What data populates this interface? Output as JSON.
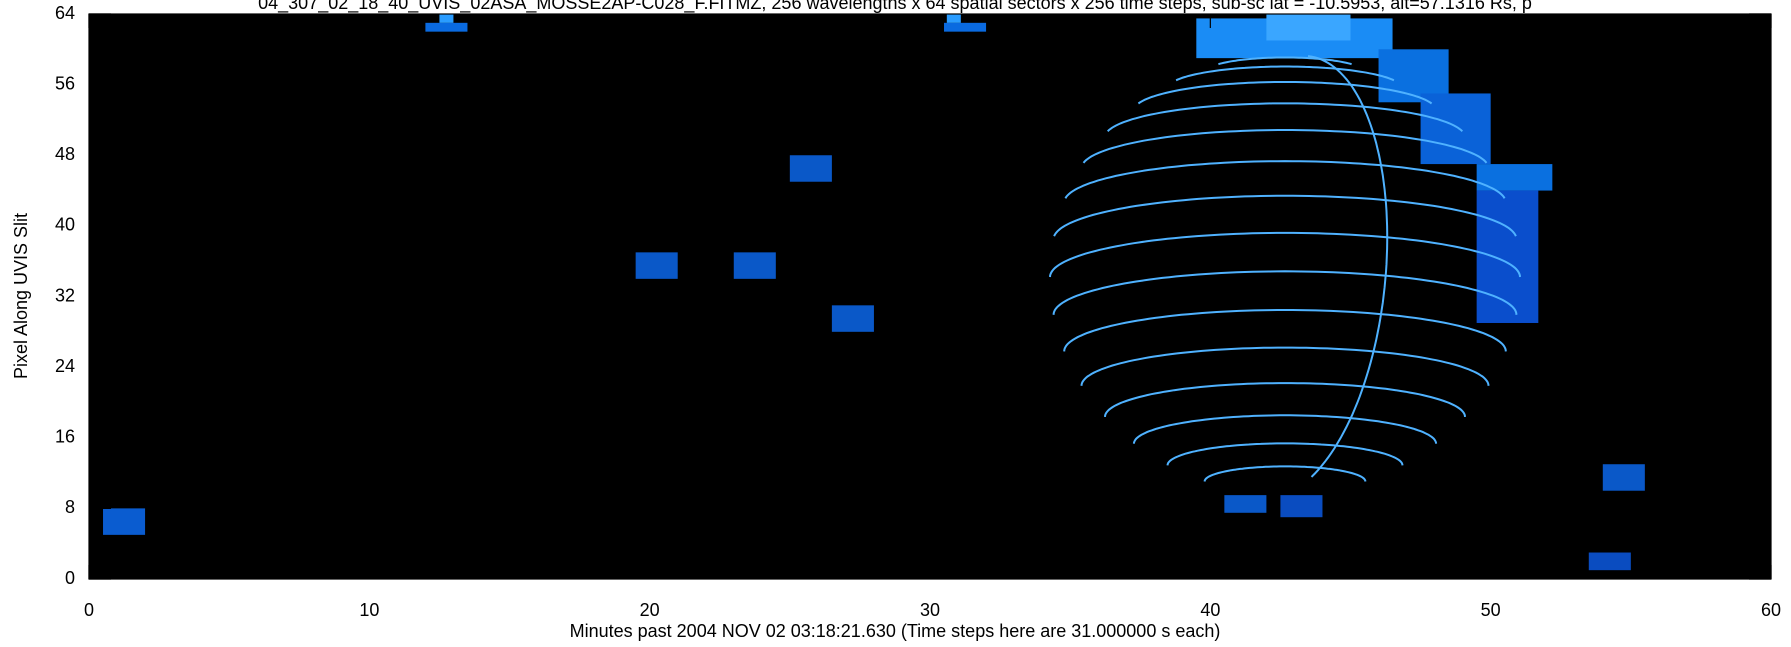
{
  "chart_data": {
    "type": "heatmap",
    "title": "04_307_02_18_40_UVIS_02ASA_MOSSE2AP-C028_F.FITMZ, 256 wavelengths x 64 spatial sectors x 256 time steps, sub-sc lat = -10.5953, alt=57.1316 Rs, p",
    "x_label": "Minutes past 2004 NOV 02 03:18:21.630 (Time steps here are 31.000000 s each)",
    "y_label": "Pixel Along UVIS Slit",
    "xlim": [
      0,
      60
    ],
    "xticks": [
      0,
      10,
      20,
      30,
      40,
      50,
      60
    ],
    "ylim": [
      0,
      64
    ],
    "yticks": [
      0,
      8,
      16,
      24,
      32,
      40,
      48,
      56,
      64
    ],
    "background": "#000000",
    "cells": [
      {
        "x": [
          0.5,
          2
        ],
        "y": [
          5,
          8
        ],
        "color": "#0a5cd0"
      },
      {
        "x": [
          12,
          13.5
        ],
        "y": [
          62,
          63
        ],
        "color": "#0a6ae0"
      },
      {
        "x": [
          12.5,
          13
        ],
        "y": [
          63,
          64
        ],
        "color": "#2a9cff"
      },
      {
        "x": [
          30.5,
          32
        ],
        "y": [
          62,
          63
        ],
        "color": "#0a6ae0"
      },
      {
        "x": [
          30.6,
          31.1
        ],
        "y": [
          63,
          64
        ],
        "color": "#2a9cff"
      },
      {
        "x": [
          25,
          26.5
        ],
        "y": [
          45,
          48
        ],
        "color": "#0a58c8"
      },
      {
        "x": [
          19.5,
          21
        ],
        "y": [
          34,
          37
        ],
        "color": "#0a58c8"
      },
      {
        "x": [
          23,
          24.5
        ],
        "y": [
          34,
          37
        ],
        "color": "#0a58c8"
      },
      {
        "x": [
          26.5,
          28
        ],
        "y": [
          28,
          31
        ],
        "color": "#0a58c8"
      },
      {
        "x": [
          54,
          55.5
        ],
        "y": [
          10,
          13
        ],
        "color": "#0a58c8"
      },
      {
        "x": [
          53.5,
          55
        ],
        "y": [
          1,
          3
        ],
        "color": "#0a4cc0"
      },
      {
        "x": [
          40.5,
          42
        ],
        "y": [
          7.5,
          9.5
        ],
        "color": "#0a58c8"
      },
      {
        "x": [
          42.5,
          44
        ],
        "y": [
          7,
          9.5
        ],
        "color": "#0a4cc0"
      },
      {
        "x": [
          39.5,
          46.5
        ],
        "y": [
          59,
          63.5
        ],
        "color": "#1a8cf5"
      },
      {
        "x": [
          42,
          45
        ],
        "y": [
          61,
          64
        ],
        "color": "#3aa6ff"
      },
      {
        "x": [
          46,
          48.5
        ],
        "y": [
          54,
          60
        ],
        "color": "#0a70e0"
      },
      {
        "x": [
          47.5,
          50
        ],
        "y": [
          47,
          55
        ],
        "color": "#0a62d8"
      },
      {
        "x": [
          49.5,
          52.2
        ],
        "y": [
          44,
          47
        ],
        "color": "#0a70e0"
      },
      {
        "x": [
          49.5,
          51.7
        ],
        "y": [
          29,
          44
        ],
        "color": "#0a4ecc"
      }
    ]
  }
}
